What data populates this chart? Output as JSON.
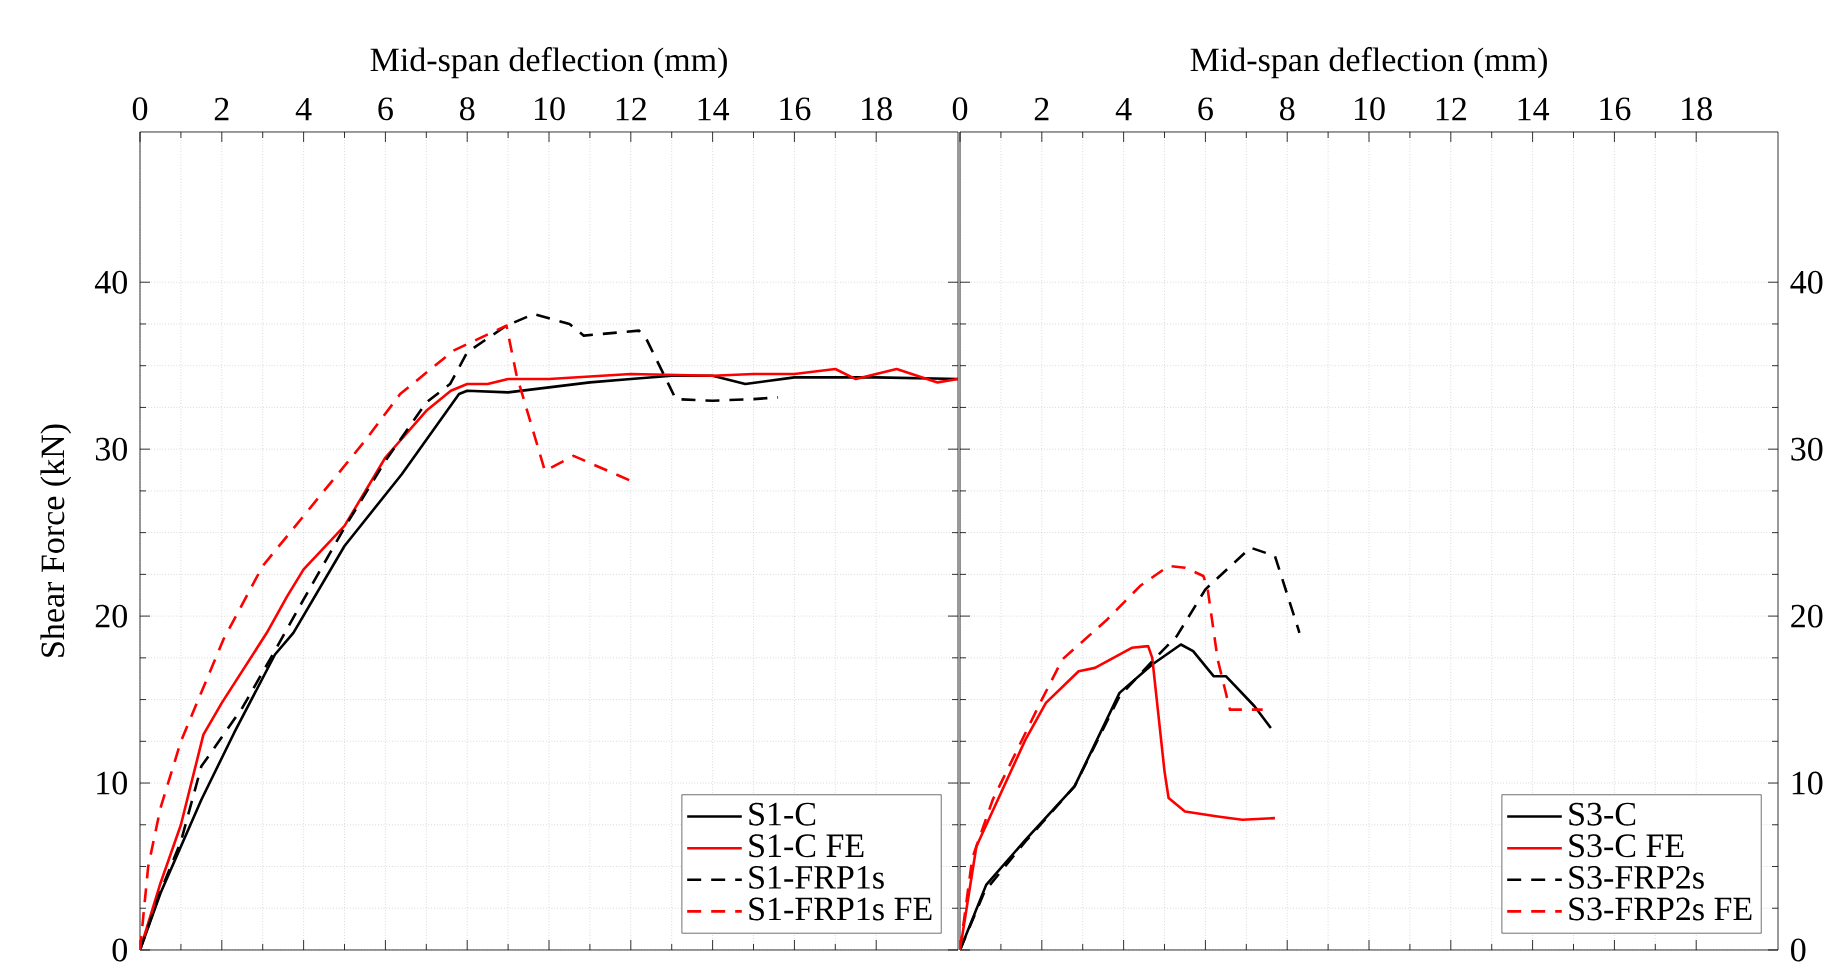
{
  "chart_data": [
    {
      "type": "line",
      "xlabel": "Mid-span deflection (mm)",
      "ylabel": "Shear Force (kN)",
      "xlim": [
        0,
        20
      ],
      "xticks": [
        0,
        2,
        4,
        6,
        8,
        10,
        12,
        14,
        16,
        18
      ],
      "ylim": [
        0,
        49
      ],
      "yticks": [
        0,
        10,
        20,
        30,
        40
      ],
      "grid": true,
      "legend": "bottom right",
      "series": [
        {
          "name": "S1-C",
          "color": "#000000",
          "line_style": "solid",
          "x": [
            0,
            0.5,
            1.5,
            2.3,
            3.3,
            3.75,
            5.0,
            6.4,
            7.8,
            8.0,
            9.0,
            10,
            11,
            12,
            13,
            14,
            14.8,
            16,
            17,
            18,
            20
          ],
          "values": [
            0,
            3.4,
            9.0,
            13,
            17.7,
            19,
            24.2,
            28.5,
            33.3,
            33.5,
            33.4,
            33.7,
            34.0,
            34.2,
            34.4,
            34.4,
            33.9,
            34.3,
            34.3,
            34.3,
            34.2
          ]
        },
        {
          "name": "S1-C FE",
          "color": "#ff0000",
          "line_style": "solid",
          "x": [
            0,
            0.5,
            1.0,
            1.55,
            2.0,
            3.1,
            3.6,
            4.0,
            5.0,
            6.0,
            7.0,
            7.6,
            8.0,
            8.5,
            9.0,
            10,
            12,
            14,
            15,
            16,
            17,
            17.5,
            18.5,
            19.5,
            20
          ],
          "values": [
            0,
            4,
            7.5,
            12.9,
            14.8,
            19,
            21.2,
            22.8,
            25.4,
            29.5,
            32.3,
            33.5,
            33.9,
            33.9,
            34.2,
            34.2,
            34.5,
            34.4,
            34.5,
            34.5,
            34.8,
            34.2,
            34.8,
            34.0,
            34.2
          ]
        },
        {
          "name": "S1-FRP1s",
          "color": "#000000",
          "line_style": "dashed",
          "x": [
            0,
            0.5,
            1,
            1.5,
            2.5,
            3.2,
            4,
            5,
            6,
            7,
            7.58,
            8,
            8.96,
            9.63,
            10.5,
            10.85,
            12.2,
            12.4,
            13.1,
            14,
            15,
            15.6
          ],
          "values": [
            0,
            3.5,
            6.5,
            11,
            14.5,
            17.5,
            21,
            25.3,
            29.3,
            32.8,
            33.9,
            35.8,
            37.4,
            38.1,
            37.5,
            36.8,
            37.1,
            36.5,
            33.0,
            32.9,
            33.0,
            33.1
          ]
        },
        {
          "name": "S1-FRP1s FE",
          "color": "#ff0000",
          "line_style": "dashed",
          "x": [
            0,
            0.2,
            0.5,
            1,
            2.04,
            3,
            4.4,
            5.5,
            6.36,
            7.66,
            8.96,
            9.2,
            9.9,
            10.6,
            12.0
          ],
          "values": [
            0,
            5,
            8.5,
            12.5,
            18.6,
            23,
            27.2,
            30.5,
            33.3,
            35.9,
            37.4,
            34.5,
            28.7,
            29.6,
            28.1
          ]
        }
      ]
    },
    {
      "type": "line",
      "xlabel": "Mid-span deflection (mm)",
      "xlim": [
        0,
        20
      ],
      "xticks": [
        0,
        2,
        4,
        6,
        8,
        10,
        12,
        14,
        16,
        18
      ],
      "ylim": [
        0,
        49
      ],
      "yticks": [
        0,
        10,
        20,
        30,
        40
      ],
      "grid": true,
      "legend": "bottom right",
      "series": [
        {
          "name": "S3-C",
          "color": "#000000",
          "line_style": "solid",
          "x": [
            0,
            0.64,
            1.6,
            2.8,
            3.9,
            4.7,
            5.4,
            5.7,
            6.2,
            6.5,
            7.2,
            7.6
          ],
          "values": [
            0,
            3.9,
            6.6,
            9.8,
            15.4,
            17.1,
            18.3,
            17.9,
            16.4,
            16.4,
            14.6,
            13.3
          ]
        },
        {
          "name": "S3-C FE",
          "color": "#ff0000",
          "line_style": "solid",
          "x": [
            0,
            0.4,
            1.0,
            1.6,
            2.1,
            2.9,
            3.3,
            4.2,
            4.6,
            4.7,
            5.0,
            5.1,
            5.5,
            6.3,
            6.9,
            7.7
          ],
          "values": [
            0,
            6.2,
            9.4,
            12.6,
            14.8,
            16.7,
            16.9,
            18.1,
            18.2,
            17.5,
            10.7,
            9.1,
            8.3,
            8.0,
            7.8,
            7.9
          ]
        },
        {
          "name": "S3-FRP2s",
          "color": "#000000",
          "line_style": "dashed",
          "x": [
            0,
            0.6,
            1.6,
            2.8,
            3.9,
            4.7,
            5.3,
            6.0,
            7.1,
            7.7,
            8.3
          ],
          "values": [
            0,
            3.5,
            6.5,
            9.8,
            15.2,
            17.3,
            18.8,
            21.6,
            24.1,
            23.6,
            19.0
          ]
        },
        {
          "name": "S3-FRP2s FE",
          "color": "#ff0000",
          "line_style": "dashed",
          "x": [
            0,
            0.3,
            0.8,
            1.96,
            2.5,
            3.6,
            4.4,
            5.1,
            5.5,
            5.95,
            6.05,
            6.3,
            6.6,
            7.4
          ],
          "values": [
            0,
            5.5,
            9.0,
            14.8,
            17.4,
            19.8,
            21.8,
            23.0,
            22.9,
            22.4,
            21.7,
            17.4,
            14.4,
            14.4
          ]
        }
      ]
    }
  ]
}
